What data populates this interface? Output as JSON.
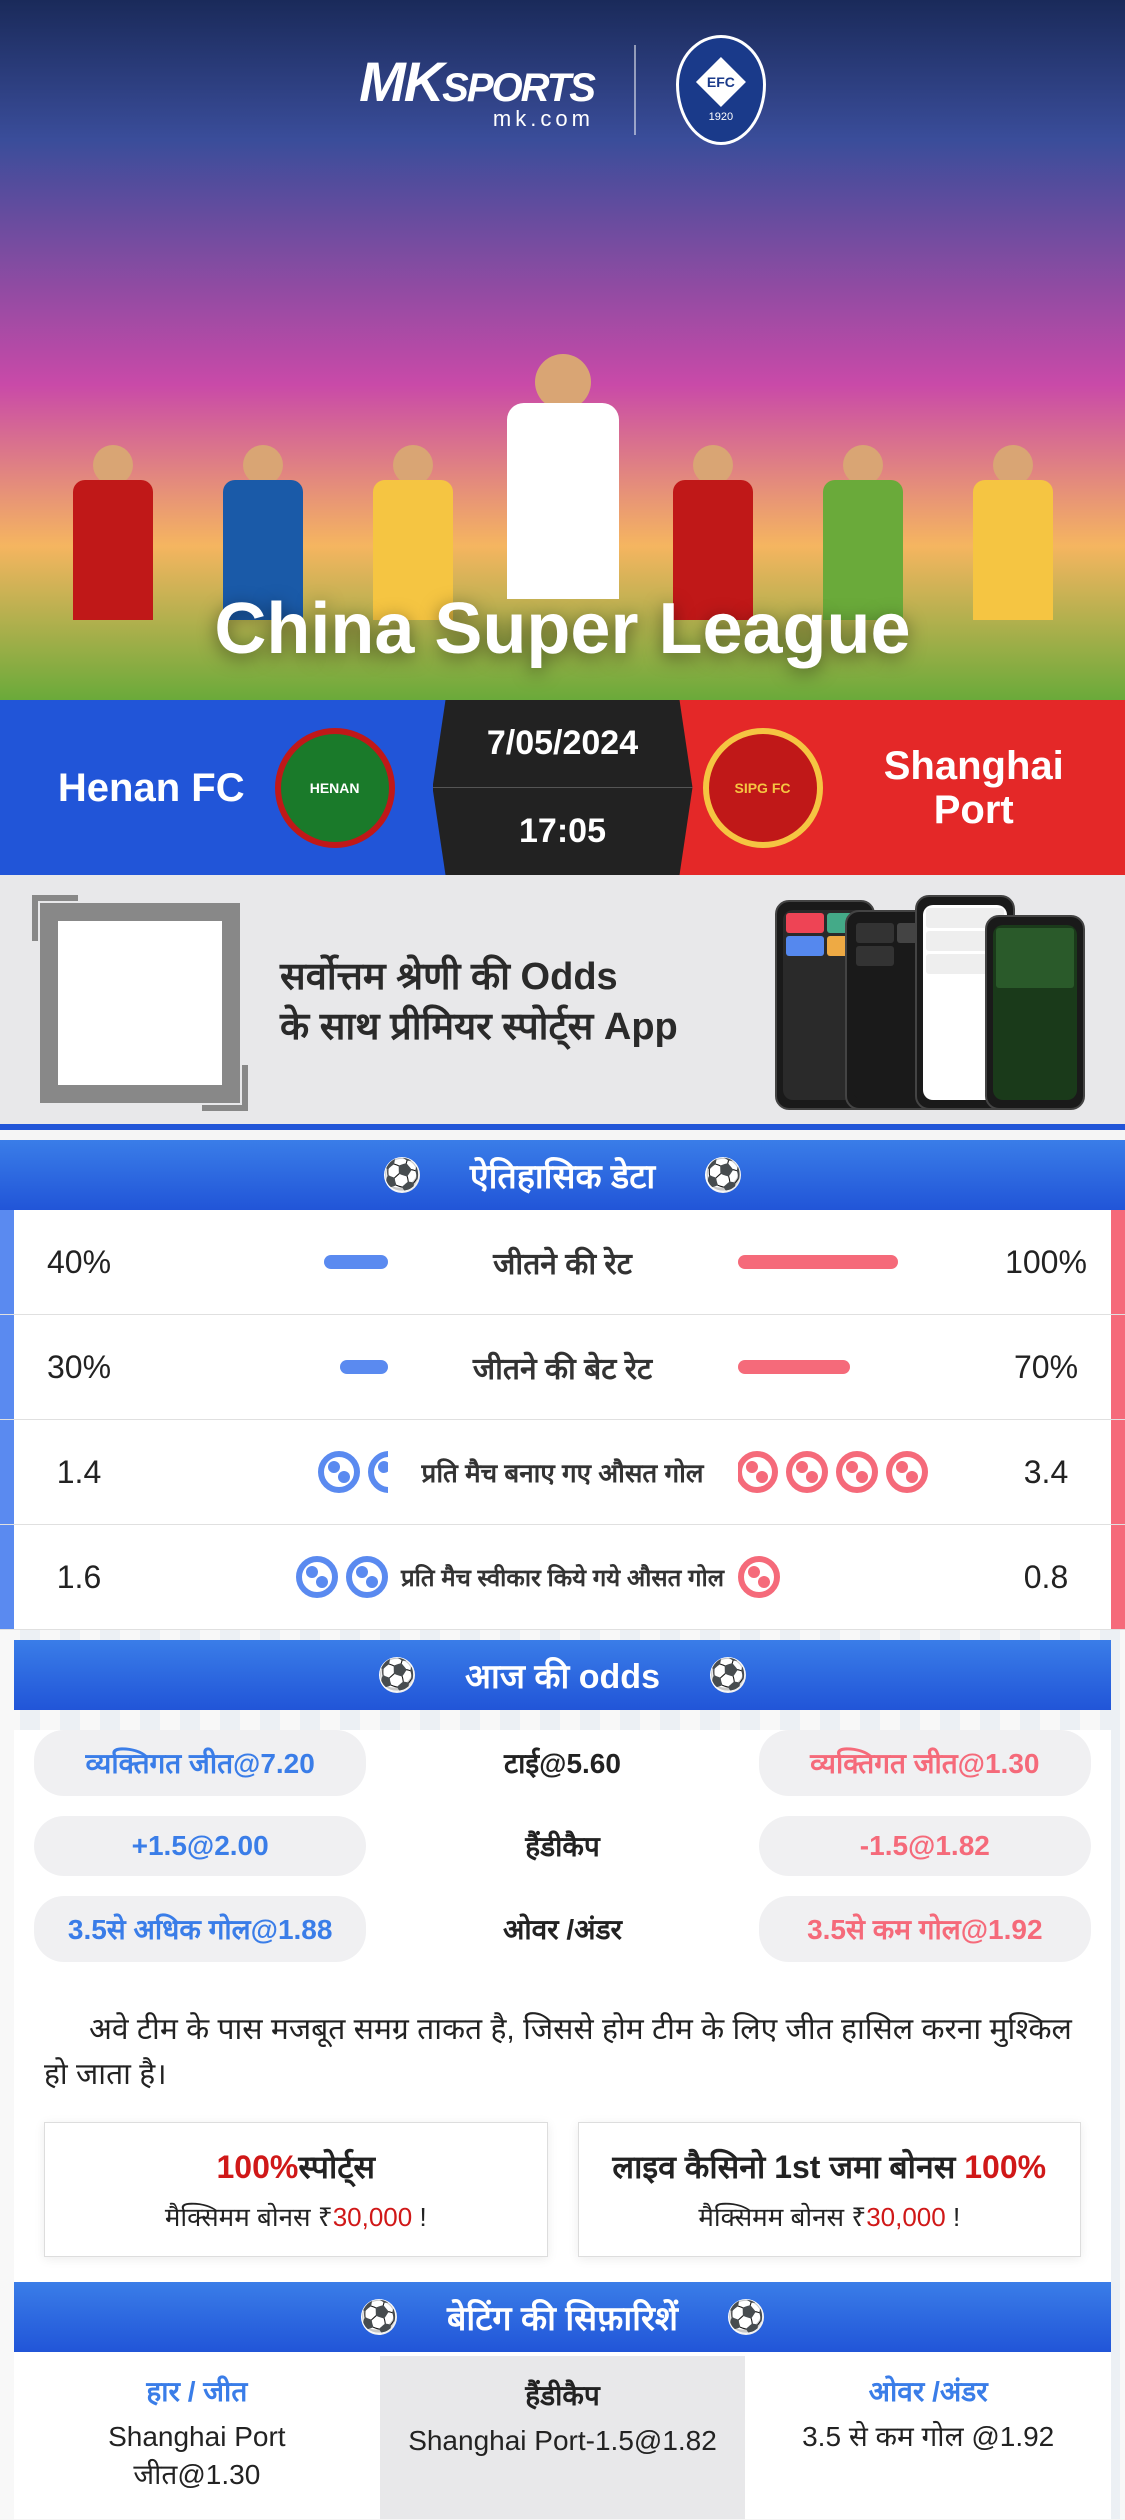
{
  "hero": {
    "brand_main": "MK",
    "brand_sports": "SPORTS",
    "brand_url": "mk.com",
    "partner_badge": "EFC",
    "partner_year": "1920",
    "league_title": "China Super League"
  },
  "match": {
    "home_name": "Henan FC",
    "home_logo_text": "HENAN",
    "away_name": "Shanghai Port",
    "away_logo_text": "SIPG FC",
    "date": "7/05/2024",
    "time": "17:05"
  },
  "promo": {
    "line1": "सर्वोत्तम श्रेणी की Odds",
    "line2": "के साथ प्रीमियर स्पोर्ट्स App"
  },
  "sections": {
    "historical": "ऐतिहासिक डेटा",
    "today_odds": "आज की odds",
    "recommendations": "बेटिंग की सिफ़ारिशें"
  },
  "historical_stats": [
    {
      "type": "bar",
      "home_val": "40%",
      "home_pct": 40,
      "away_val": "100%",
      "away_pct": 100,
      "label": "जीतने की रेट",
      "label_size": "30px"
    },
    {
      "type": "bar",
      "home_val": "30%",
      "home_pct": 30,
      "away_val": "70%",
      "away_pct": 70,
      "label": "जीतने की बेट रेट",
      "label_size": "30px"
    },
    {
      "type": "balls",
      "home_val": "1.4",
      "home_balls": 2,
      "away_val": "3.4",
      "away_balls": 4,
      "label": "प्रति मैच बनाए गए औसत गोल",
      "label_size": "26px",
      "home_clip": 60,
      "away_clip": 20
    },
    {
      "type": "balls",
      "home_val": "1.6",
      "home_balls": 2,
      "away_val": "0.8",
      "away_balls": 1,
      "label": "प्रति मैच स्वीकार किये गये औसत गोल",
      "label_size": "24px",
      "home_clip": 0,
      "away_clip": 0
    }
  ],
  "odds": [
    {
      "home": "व्यक्तिगत जीत@7.20",
      "mid": "टाई@5.60",
      "away": "व्यक्तिगत जीत@1.30"
    },
    {
      "home": "+1.5@2.00",
      "mid": "हैंडीकैप",
      "away": "-1.5@1.82"
    },
    {
      "home": "3.5से अधिक गोल@1.88",
      "mid": "ओवर /अंडर",
      "away": "3.5से कम गोल@1.92"
    }
  ],
  "analysis": "अवे टीम के पास मजबूत समग्र ताकत है, जिससे होम टीम के लिए जीत हासिल करना मुश्किल हो जाता है।",
  "bonuses": [
    {
      "pct": "100%",
      "title_rest": "स्पोर्ट्स",
      "sub_pre": "मैक्सिमम बोनस  ₹",
      "amount": "30,000",
      "sub_post": " !"
    },
    {
      "title_pre": "लाइव कैसिनो 1st जमा बोनस ",
      "pct": "100%",
      "sub_pre": "मैक्सिमम बोनस ₹",
      "amount": "30,000",
      "sub_post": " !"
    }
  ],
  "recommendations": [
    {
      "header": "हार / जीत",
      "body_l1": "Shanghai Port",
      "body_l2": "जीत@1.30"
    },
    {
      "header": "हैंडीकैप",
      "body": "Shanghai Port-1.5@1.82"
    },
    {
      "header": "ओवर /अंडर",
      "body": "3.5 से कम गोल @1.92"
    }
  ],
  "colors": {
    "home": "#5a8af0",
    "away": "#f56a7a"
  }
}
